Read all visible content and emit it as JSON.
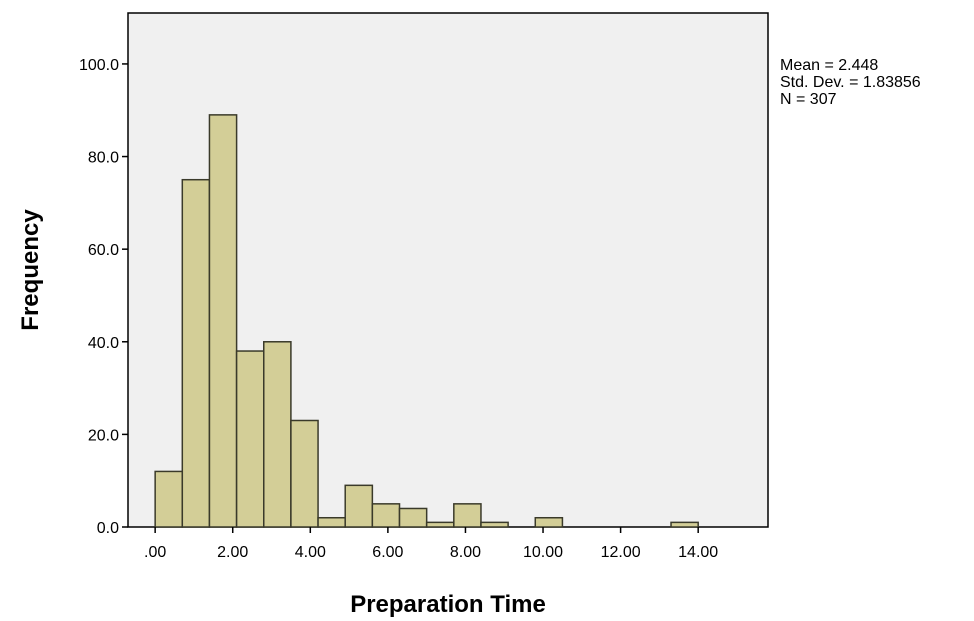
{
  "chart_data": {
    "type": "bar",
    "subtype": "histogram",
    "xlabel": "Preparation Time",
    "ylabel": "Frequency",
    "xlim": [
      -0.7,
      15.8
    ],
    "ylim": [
      0,
      111
    ],
    "bin_width": 0.7,
    "first_bin_start": 0.0,
    "bins": [
      {
        "x0": 0.0,
        "x1": 0.7,
        "count": 12
      },
      {
        "x0": 0.7,
        "x1": 1.4,
        "count": 75
      },
      {
        "x0": 1.4,
        "x1": 2.1,
        "count": 89
      },
      {
        "x0": 2.1,
        "x1": 2.8,
        "count": 38
      },
      {
        "x0": 2.8,
        "x1": 3.5,
        "count": 40
      },
      {
        "x0": 3.5,
        "x1": 4.2,
        "count": 23
      },
      {
        "x0": 4.2,
        "x1": 4.9,
        "count": 2
      },
      {
        "x0": 4.9,
        "x1": 5.6,
        "count": 9
      },
      {
        "x0": 5.6,
        "x1": 6.3,
        "count": 5
      },
      {
        "x0": 6.3,
        "x1": 7.0,
        "count": 4
      },
      {
        "x0": 7.0,
        "x1": 7.7,
        "count": 1
      },
      {
        "x0": 7.7,
        "x1": 8.4,
        "count": 5
      },
      {
        "x0": 8.4,
        "x1": 9.1,
        "count": 1
      },
      {
        "x0": 9.8,
        "x1": 10.5,
        "count": 2
      },
      {
        "x0": 13.3,
        "x1": 14.0,
        "count": 1
      }
    ],
    "x_ticks": [
      0,
      2,
      4,
      6,
      8,
      10,
      12,
      14
    ],
    "x_tick_labels": [
      ".00",
      "2.00",
      "4.00",
      "6.00",
      "8.00",
      "10.00",
      "12.00",
      "14.00"
    ],
    "y_ticks": [
      0,
      20,
      40,
      60,
      80,
      100
    ],
    "y_tick_labels": [
      "0.0",
      "20.0",
      "40.0",
      "60.0",
      "80.0",
      "100.0"
    ],
    "stats": {
      "mean": "Mean = 2.448",
      "std": "Std. Dev. = 1.83856",
      "n": "N = 307"
    },
    "colors": {
      "plot_background": "#f0f0f0",
      "bar_fill": "#d3ce97",
      "bar_stroke": "#3a3a2a"
    },
    "grid": false,
    "legend": "none"
  }
}
